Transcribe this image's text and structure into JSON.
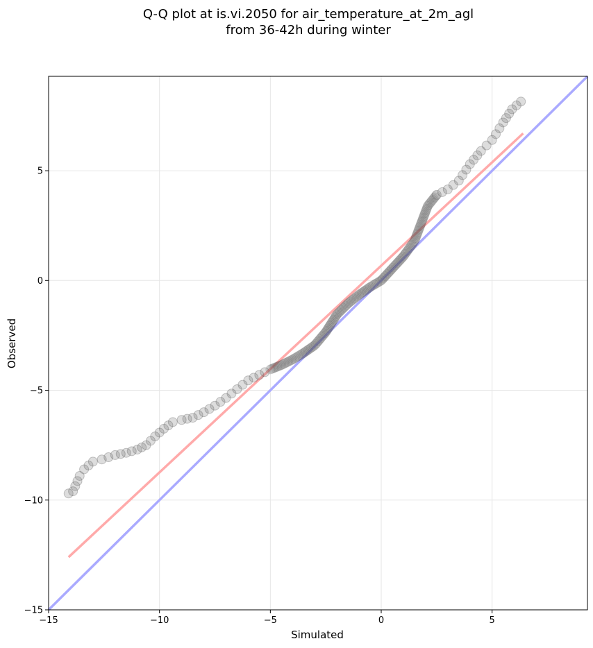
{
  "chart_data": {
    "type": "scatter",
    "title_lines": [
      "Q-Q plot at is.vi.2050 for air_temperature_at_2m_agl",
      "from 36-42h during winter"
    ],
    "xlabel": "Simulated",
    "ylabel": "Observed",
    "xlim": [
      -15,
      9.3
    ],
    "ylim": [
      -15,
      9.3
    ],
    "xticks": [
      -15,
      -10,
      -5,
      0,
      5
    ],
    "yticks": [
      -15,
      -10,
      -5,
      0,
      5
    ],
    "xtick_labels": [
      "−15",
      "−10",
      "−5",
      "0",
      "5"
    ],
    "ytick_labels": [
      "−15",
      "−10",
      "−5",
      "0",
      "5"
    ],
    "grid": true,
    "lines": [
      {
        "role": "one-to-one",
        "color": "#aaaaff",
        "x": [
          -15,
          9.3
        ],
        "y": [
          -15,
          9.3
        ]
      },
      {
        "role": "fit",
        "color": "#ffaaaa",
        "x": [
          -14.1,
          6.4
        ],
        "y": [
          -12.6,
          6.7
        ]
      }
    ],
    "marker_color": "#555555",
    "anchors": [
      {
        "x": -14.1,
        "y": -9.7
      },
      {
        "x": -13.9,
        "y": -9.6
      },
      {
        "x": -13.6,
        "y": -8.9
      },
      {
        "x": -13.4,
        "y": -8.6
      },
      {
        "x": -13.0,
        "y": -8.25
      },
      {
        "x": -12.6,
        "y": -8.15
      },
      {
        "x": -12.0,
        "y": -7.95
      },
      {
        "x": -11.5,
        "y": -7.85
      },
      {
        "x": -11.0,
        "y": -7.7
      },
      {
        "x": -10.6,
        "y": -7.5
      },
      {
        "x": -10.2,
        "y": -7.1
      },
      {
        "x": -9.8,
        "y": -6.75
      },
      {
        "x": -9.4,
        "y": -6.45
      },
      {
        "x": -9.0,
        "y": -6.35
      },
      {
        "x": -8.5,
        "y": -6.25
      },
      {
        "x": -8.0,
        "y": -6.0
      },
      {
        "x": -7.5,
        "y": -5.7
      },
      {
        "x": -7.0,
        "y": -5.35
      },
      {
        "x": -6.5,
        "y": -4.95
      },
      {
        "x": -6.0,
        "y": -4.55
      },
      {
        "x": -5.5,
        "y": -4.3
      },
      {
        "x": -5.0,
        "y": -4.05
      },
      {
        "x": -4.5,
        "y": -3.85
      },
      {
        "x": -4.0,
        "y": -3.6
      },
      {
        "x": -3.5,
        "y": -3.3
      },
      {
        "x": -3.0,
        "y": -2.95
      },
      {
        "x": -2.5,
        "y": -2.35
      },
      {
        "x": -2.0,
        "y": -1.55
      },
      {
        "x": -1.5,
        "y": -1.05
      },
      {
        "x": -1.0,
        "y": -0.65
      },
      {
        "x": -0.5,
        "y": -0.3
      },
      {
        "x": 0.0,
        "y": 0.0
      },
      {
        "x": 0.5,
        "y": 0.55
      },
      {
        "x": 1.0,
        "y": 1.1
      },
      {
        "x": 1.5,
        "y": 1.8
      },
      {
        "x": 1.8,
        "y": 2.6
      },
      {
        "x": 2.1,
        "y": 3.4
      },
      {
        "x": 2.5,
        "y": 3.9
      },
      {
        "x": 3.0,
        "y": 4.15
      },
      {
        "x": 3.5,
        "y": 4.55
      },
      {
        "x": 4.0,
        "y": 5.3
      },
      {
        "x": 4.5,
        "y": 5.9
      },
      {
        "x": 5.0,
        "y": 6.4
      },
      {
        "x": 5.5,
        "y": 7.2
      },
      {
        "x": 5.9,
        "y": 7.8
      },
      {
        "x": 6.3,
        "y": 8.15
      }
    ]
  }
}
